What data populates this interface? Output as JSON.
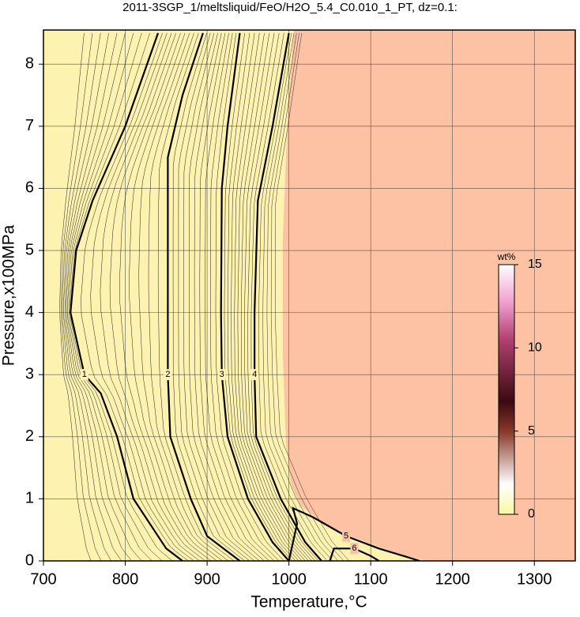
{
  "chart_data": {
    "type": "contour",
    "title": "2011-3SGP_1/meltsliquid/FeO/H2O_5.4_C0.010_1_PT, dz=0.1:",
    "x_label": "Temperature,°C",
    "y_label": "Pressure,x100MPa",
    "xlim": [
      700,
      1350
    ],
    "ylim": [
      0,
      8.55
    ],
    "xticks": [
      700,
      800,
      900,
      1000,
      1100,
      1200,
      1300
    ],
    "yticks": [
      0,
      1,
      2,
      3,
      4,
      5,
      6,
      7,
      8
    ],
    "grid": true,
    "series": [
      {
        "name": "1",
        "color": "#000000",
        "x": [
          840,
          800,
          760,
          740,
          733,
          750,
          770,
          790,
          810,
          850,
          870
        ],
        "values": [
          8.5,
          7,
          5.8,
          5,
          4,
          3,
          2.7,
          2,
          1,
          0.2,
          0
        ]
      },
      {
        "name": "2",
        "color": "#000000",
        "x": [
          895,
          870,
          852,
          852,
          852,
          855,
          880,
          900,
          940
        ],
        "values": [
          8.5,
          7.5,
          6.5,
          5,
          3,
          2,
          1,
          0.4,
          0
        ]
      },
      {
        "name": "3",
        "color": "#000000",
        "x": [
          940,
          925,
          918,
          917,
          918,
          925,
          950,
          980,
          1000
        ],
        "values": [
          8.5,
          7,
          6,
          4,
          3,
          2,
          1,
          0.3,
          0
        ]
      },
      {
        "name": "4",
        "color": "#000000",
        "x": [
          1000,
          980,
          962,
          958,
          958,
          960,
          990,
          1020,
          1040
        ],
        "values": [
          8.5,
          7,
          5.8,
          4,
          3,
          2,
          1,
          0.3,
          0
        ]
      },
      {
        "name": "5",
        "color": "#000000",
        "x": [
          1000,
          1010,
          1005,
          1030,
          1070,
          1110,
          1140,
          1160
        ],
        "values": [
          0,
          0.6,
          0.85,
          0.7,
          0.4,
          0.2,
          0.08,
          0
        ]
      },
      {
        "name": "6",
        "color": "#000000",
        "x": [
          1050,
          1055,
          1080,
          1100,
          1110
        ],
        "values": [
          0,
          0.2,
          0.2,
          0.08,
          0
        ]
      }
    ],
    "colorbar": {
      "label": "wt%",
      "lim": [
        0,
        15
      ],
      "ticks": [
        0,
        5,
        10,
        15
      ]
    }
  }
}
